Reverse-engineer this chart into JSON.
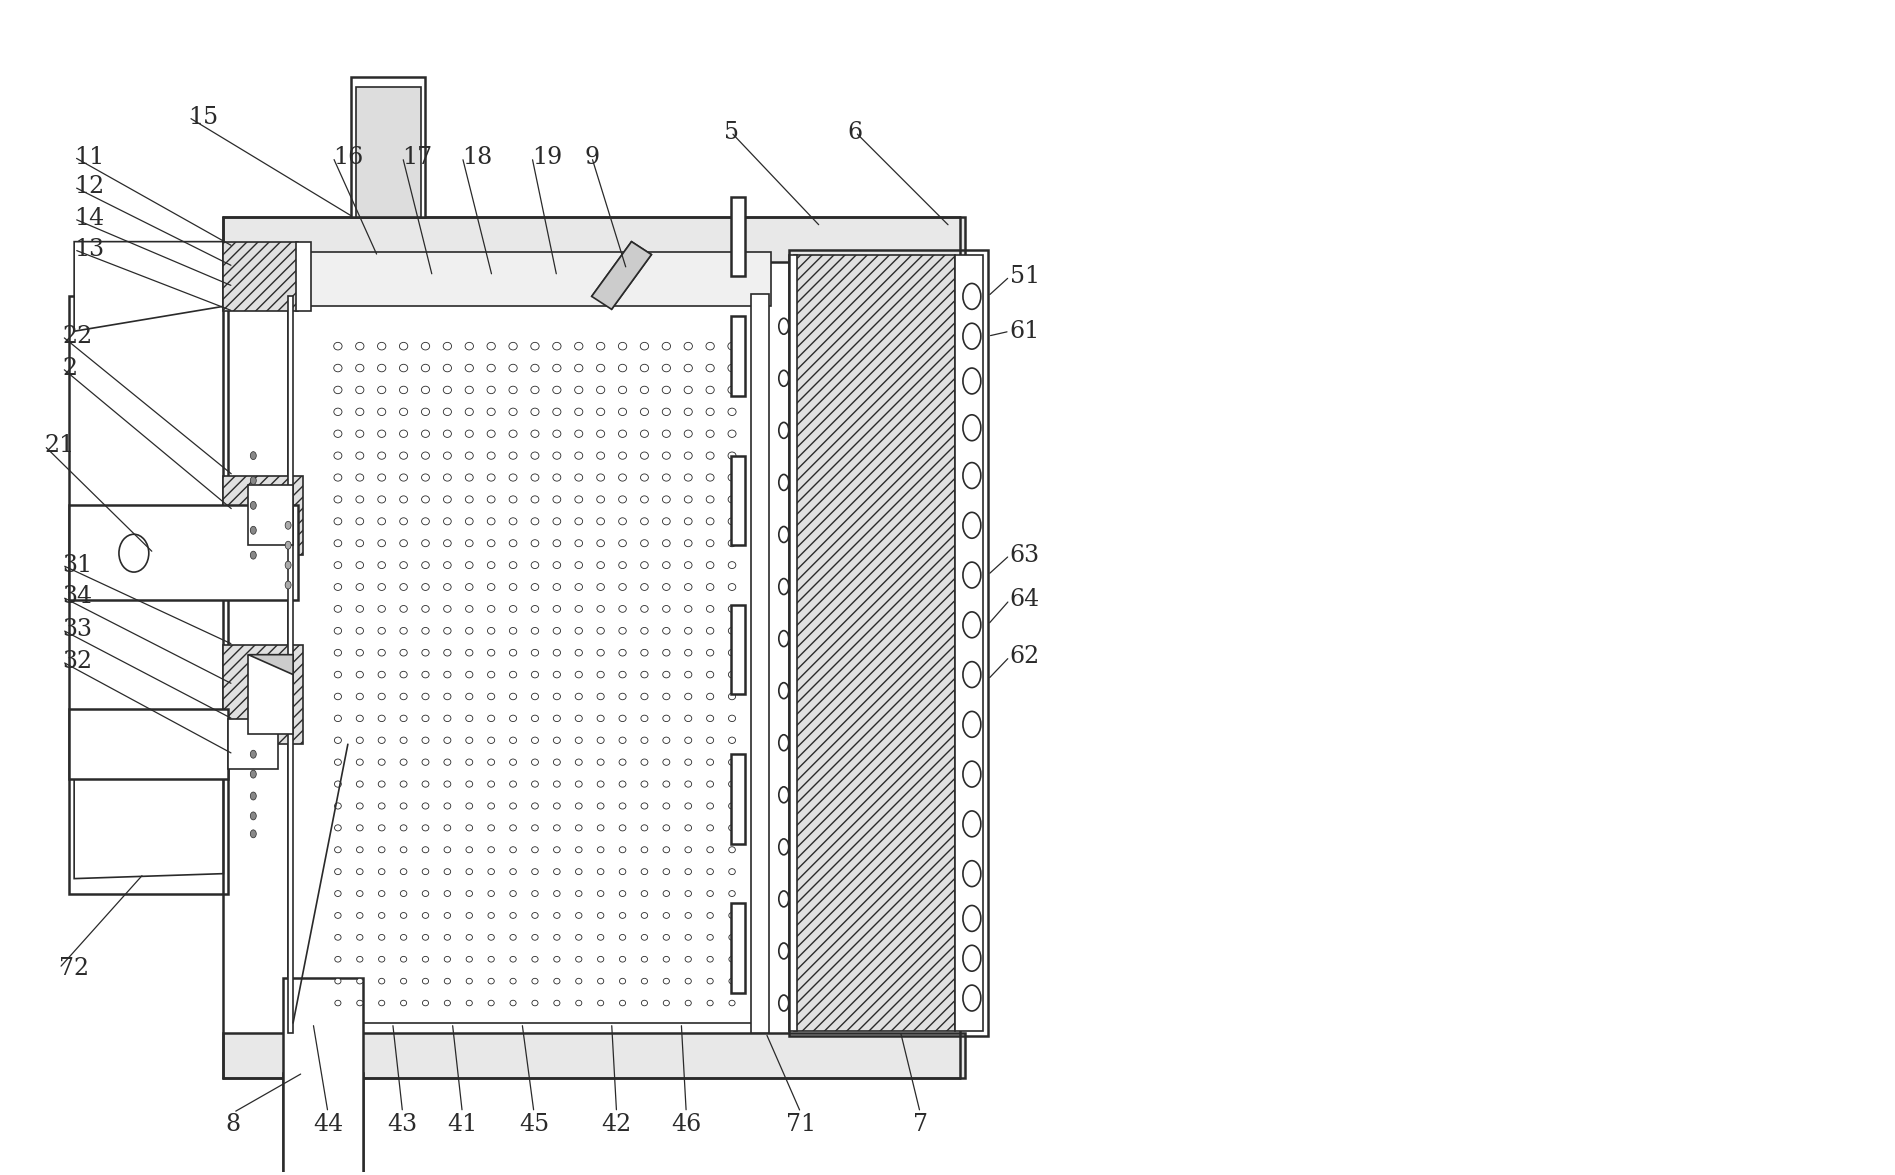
{
  "bg_color": "#ffffff",
  "lc": "#2a2a2a",
  "figsize": [
    18.95,
    11.75
  ],
  "dpi": 100,
  "fs": 17
}
